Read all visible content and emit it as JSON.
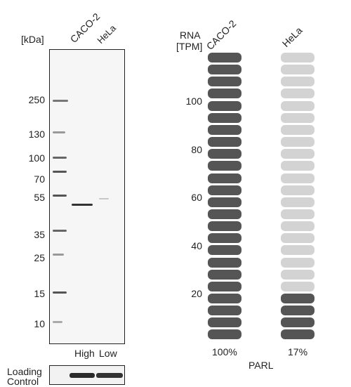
{
  "western_blot": {
    "unit_label": "[kDa]",
    "lanes": [
      "CACO-2",
      "HeLa"
    ],
    "markers": [
      "250",
      "130",
      "100",
      "70",
      "55",
      "35",
      "25",
      "15",
      "10"
    ],
    "expression_labels": [
      "High",
      "Low"
    ],
    "loading_control_label": [
      "Loading",
      "Control"
    ]
  },
  "rna": {
    "axis_label": [
      "RNA",
      "[TPM]"
    ],
    "cell_lines": [
      "CACO-2",
      "HeLa"
    ],
    "ticks": [
      "100",
      "80",
      "60",
      "40",
      "20"
    ],
    "percentages": [
      "100%",
      "17%"
    ],
    "gene": "PARL",
    "colors": {
      "filled": "#555555",
      "empty": "#d3d3d3"
    }
  },
  "chart_data": {
    "type": "bar",
    "categories": [
      "CACO-2",
      "HeLa"
    ],
    "values": [
      100,
      17
    ],
    "ylabel": "RNA [TPM]",
    "xlabel": "PARL",
    "grid": false
  }
}
